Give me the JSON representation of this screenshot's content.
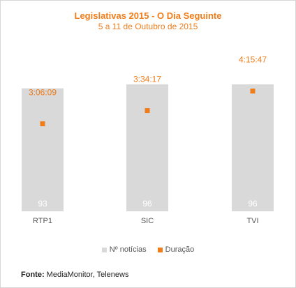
{
  "chart_data": {
    "type": "bar",
    "title": "Legislativas 2015 - O Dia Seguinte",
    "subtitle": "5 a 11 de Outubro de 2015",
    "categories": [
      "RTP1",
      "SIC",
      "TVI"
    ],
    "series": [
      {
        "name": "Nº notícias",
        "type": "bar",
        "values": [
          93,
          96,
          96
        ],
        "color": "#d9d9d9"
      },
      {
        "name": "Duração",
        "type": "scatter",
        "values": [
          "3:06:09",
          "3:34:17",
          "4:15:47"
        ],
        "seconds": [
          11169,
          12857,
          15347
        ],
        "color": "#f07c1a"
      }
    ],
    "ylim_bars": [
      0,
      96
    ],
    "ylim_duration_seconds": [
      0,
      16200
    ],
    "grid": false,
    "legend": "bottom"
  },
  "legend": {
    "bars_label": "Nº notícias",
    "points_label": "Duração"
  },
  "source": {
    "label": "Fonte:",
    "text": "MediaMonitor, Telenews"
  }
}
